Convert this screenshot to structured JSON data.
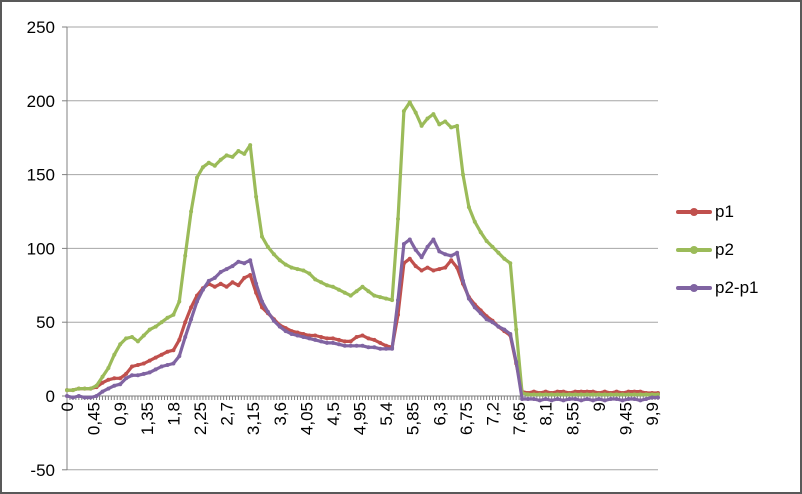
{
  "window": {
    "background": "#ffffff",
    "border_color": "#595959"
  },
  "chart": {
    "type_label": "line-chart-with-markers",
    "plot": {
      "grid": true,
      "gridline_color": "#a6a6a6",
      "axis_color": "#808080",
      "background": "#ffffff"
    },
    "y_axis": {
      "min": -50,
      "max": 250,
      "step": 50,
      "tick_labels": [
        "250",
        "200",
        "150",
        "100",
        "50",
        "0",
        "-50"
      ]
    },
    "x_axis": {
      "label_interval": 0.45,
      "minor_tick_interval": 0.05,
      "max": 10,
      "tick_labels": [
        "0",
        "0,45",
        "0,9",
        "1,35",
        "1,8",
        "2,25",
        "2,7",
        "3,15",
        "3,6",
        "4,05",
        "4,5",
        "4,95",
        "5,4",
        "5,85",
        "6,3",
        "6,75",
        "7,2",
        "7,65",
        "8,1",
        "8,55",
        "9",
        "9,45",
        "9,9"
      ]
    },
    "legend": {
      "position": "right",
      "items": [
        {
          "label": "p1",
          "color": "#C0504D"
        },
        {
          "label": "p2",
          "color": "#9BBB59"
        },
        {
          "label": "p2-p1",
          "color": "#8064A2"
        }
      ]
    }
  },
  "chart_data": {
    "type": "line",
    "title": "",
    "xlabel": "",
    "ylabel": "",
    "ylim": [
      -50,
      250
    ],
    "grid": true,
    "legend_position": "right",
    "x_start": 0,
    "x_step": 0.1,
    "series": [
      {
        "name": "p1",
        "color": "#C0504D",
        "values": [
          4,
          4,
          5,
          5,
          5,
          6,
          9,
          11,
          12,
          12,
          15,
          20,
          21,
          22,
          24,
          26,
          28,
          30,
          31,
          38,
          50,
          60,
          68,
          73,
          76,
          74,
          76,
          74,
          77,
          75,
          80,
          82,
          70,
          60,
          56,
          52,
          48,
          46,
          44,
          43,
          42,
          41,
          41,
          40,
          39,
          39,
          38,
          37,
          37,
          40,
          41,
          39,
          38,
          36,
          34,
          33,
          55,
          90,
          93,
          88,
          85,
          87,
          85,
          86,
          87,
          92,
          87,
          76,
          67,
          62,
          58,
          54,
          51,
          47,
          44,
          41,
          22,
          3,
          2,
          3,
          2,
          3,
          2,
          3,
          3,
          2,
          3,
          3,
          3,
          3,
          2,
          3,
          2,
          3,
          2,
          3,
          3,
          3,
          2,
          2,
          2
        ]
      },
      {
        "name": "p2",
        "color": "#9BBB59",
        "values": [
          4,
          4,
          5,
          5,
          5,
          7,
          13,
          19,
          28,
          35,
          39,
          40,
          37,
          41,
          45,
          47,
          50,
          53,
          55,
          64,
          95,
          125,
          148,
          155,
          158,
          156,
          160,
          163,
          162,
          166,
          164,
          170,
          135,
          108,
          101,
          96,
          92,
          89,
          87,
          86,
          85,
          83,
          79,
          77,
          75,
          74,
          72,
          70,
          68,
          71,
          74,
          71,
          68,
          67,
          66,
          65,
          120,
          193,
          199,
          192,
          183,
          188,
          191,
          184,
          186,
          182,
          183,
          150,
          128,
          118,
          111,
          105,
          101,
          97,
          93,
          90,
          45,
          2,
          1,
          1,
          1,
          1,
          1,
          1,
          1,
          1,
          1,
          1,
          1,
          1,
          1,
          1,
          1,
          1,
          1,
          1,
          1,
          1,
          1,
          1,
          1
        ]
      },
      {
        "name": "p2-p1",
        "color": "#8064A2",
        "values": [
          0,
          -1,
          0,
          -1,
          -1,
          0,
          3,
          5,
          7,
          8,
          12,
          14,
          14,
          15,
          16,
          18,
          20,
          21,
          22,
          27,
          40,
          52,
          64,
          72,
          78,
          80,
          84,
          86,
          88,
          91,
          90,
          92,
          76,
          64,
          57,
          51,
          47,
          44,
          42,
          41,
          40,
          39,
          38,
          37,
          36,
          36,
          35,
          34,
          34,
          34,
          34,
          33,
          33,
          32,
          32,
          32,
          65,
          103,
          106,
          99,
          94,
          101,
          106,
          98,
          96,
          95,
          97,
          78,
          66,
          60,
          56,
          52,
          50,
          47,
          45,
          42,
          23,
          -2,
          -2,
          -2,
          -3,
          -2,
          -3,
          -2,
          -3,
          -2,
          -2,
          -3,
          -2,
          -3,
          -2,
          -3,
          -2,
          -2,
          -3,
          -2,
          -2,
          -3,
          -2,
          -1,
          -1
        ]
      }
    ]
  }
}
